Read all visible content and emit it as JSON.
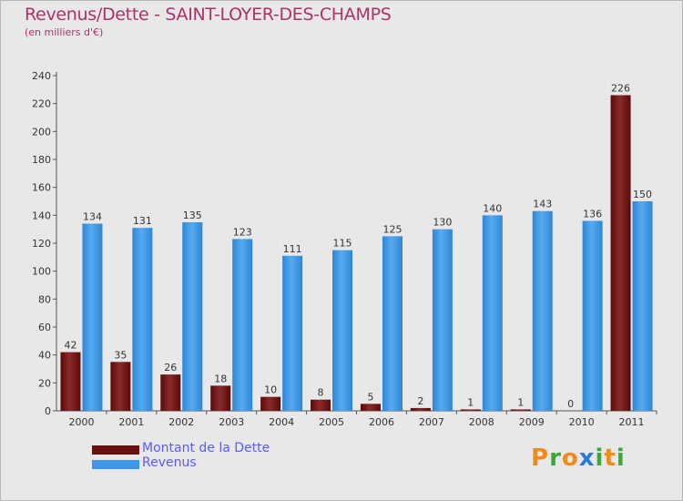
{
  "chart_data": {
    "type": "bar",
    "title": "Revenus/Dette - SAINT-LOYER-DES-CHAMPS",
    "subtitle": "(en milliers d'€)",
    "categories": [
      "2000",
      "2001",
      "2002",
      "2003",
      "2004",
      "2005",
      "2006",
      "2007",
      "2008",
      "2009",
      "2010",
      "2011"
    ],
    "series": [
      {
        "name": "Montant de la Dette",
        "color": "#7a1a1a",
        "values": [
          42,
          35,
          26,
          18,
          10,
          8,
          5,
          2,
          1,
          1,
          0,
          226
        ]
      },
      {
        "name": "Revenus",
        "color": "#3d97e6",
        "values": [
          134,
          131,
          135,
          123,
          111,
          115,
          125,
          130,
          140,
          143,
          136,
          150
        ]
      }
    ],
    "yticks": [
      0,
      20,
      40,
      60,
      80,
      100,
      120,
      140,
      160,
      180,
      200,
      220,
      240
    ],
    "ylim": [
      0,
      240
    ],
    "grid": false,
    "legend_position": "bottom-left"
  },
  "brand": {
    "letters": [
      "P",
      "r",
      "o",
      "x",
      "i",
      "t",
      "i"
    ],
    "colors": [
      "#f08a1c",
      "#3ca83c",
      "#f08a1c",
      "#2a7ad6",
      "#3ca83c",
      "#f08a1c",
      "#3ca83c"
    ]
  }
}
